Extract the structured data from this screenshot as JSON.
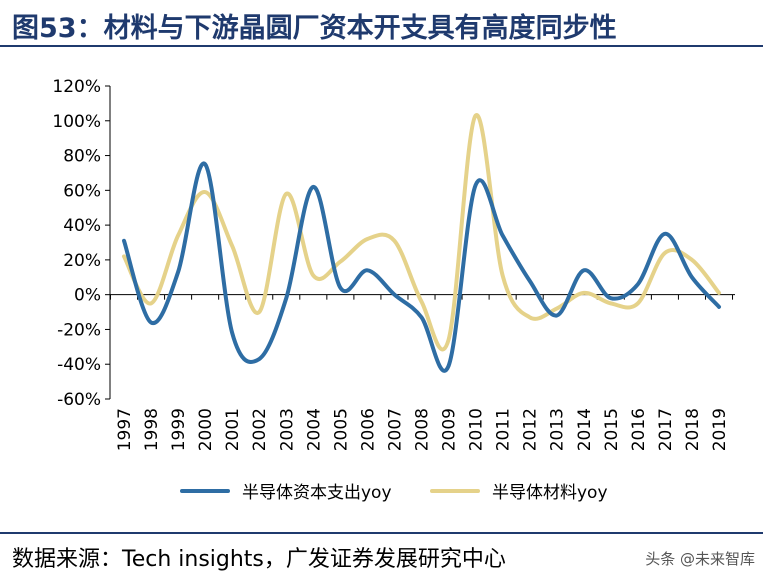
{
  "title": "图53：材料与下游晶圆厂资本开支具有高度同步性",
  "source": "数据来源：Tech insights，广发证券发展研究中心",
  "watermark": "头条 @未来智库",
  "colors": {
    "title": "#1f3a6e",
    "capex": "#2e6da4",
    "materials": "#e5d28a"
  },
  "chart_data": {
    "type": "line",
    "x": [
      "1997",
      "1998",
      "1999",
      "2000",
      "2001",
      "2002",
      "2003",
      "2004",
      "2005",
      "2006",
      "2007",
      "2008",
      "2009",
      "2010",
      "2011",
      "2012",
      "2013",
      "2014",
      "2015",
      "2016",
      "2017",
      "2018",
      "2019"
    ],
    "yticks": [
      "120%",
      "100%",
      "80%",
      "60%",
      "40%",
      "20%",
      "0%",
      "-20%",
      "-40%",
      "-60%"
    ],
    "ylim": [
      -60,
      120
    ],
    "unit": "%",
    "grid": false,
    "legend_position": "bottom",
    "series": [
      {
        "name": "半导体资本支出yoy",
        "color": "#2e6da4",
        "values": [
          31,
          -16,
          13,
          75,
          -22,
          -37,
          -2,
          62,
          4,
          14,
          0,
          -13,
          -41,
          63,
          34,
          8,
          -12,
          14,
          -2,
          6,
          35,
          10,
          -7
        ]
      },
      {
        "name": "半导体材料yoy",
        "color": "#e5d28a",
        "values": [
          22,
          -5,
          34,
          59,
          28,
          -10,
          58,
          11,
          19,
          32,
          31,
          -4,
          -26,
          103,
          11,
          -13,
          -8,
          1,
          -5,
          -5,
          24,
          20,
          1
        ]
      }
    ]
  }
}
